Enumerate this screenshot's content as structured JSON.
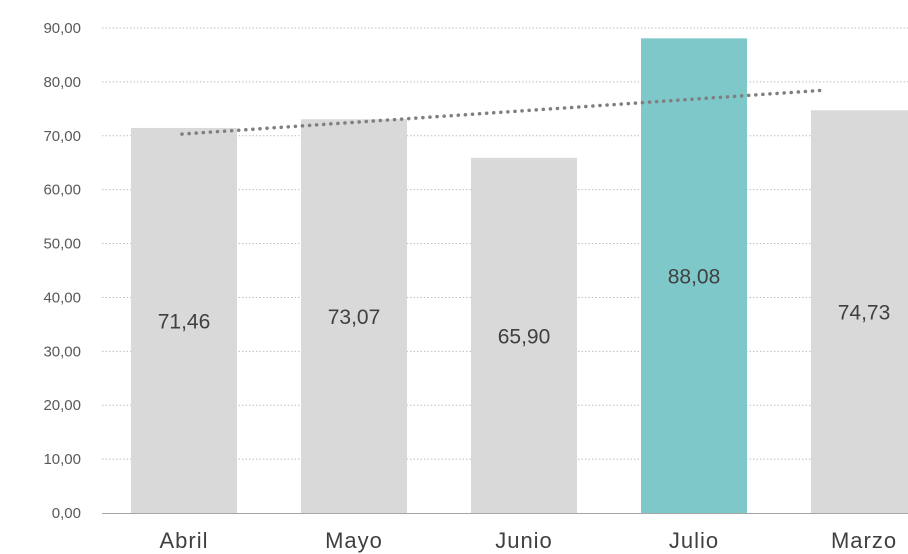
{
  "chart_data": {
    "type": "bar",
    "categories": [
      "Abril",
      "Mayo",
      "Junio",
      "Julio",
      "Marzo"
    ],
    "values": [
      71.46,
      73.07,
      65.9,
      88.08,
      74.73
    ],
    "data_labels": [
      "71,46",
      "73,07",
      "65,90",
      "88,08",
      "74,73"
    ],
    "y_ticks": [
      "0,00",
      "10,00",
      "20,00",
      "30,00",
      "40,00",
      "50,00",
      "60,00",
      "70,00",
      "80,00",
      "90,00"
    ],
    "ylim": [
      0,
      90
    ],
    "grid": true,
    "trendline": "linear",
    "highlight_index": 3,
    "colors": {
      "bar": "#d9d9d9",
      "highlight": "#7ec8ca",
      "trendline": "#7f7f7f",
      "grid": "#bfbfbf",
      "axis": "#a6a6a6"
    }
  }
}
